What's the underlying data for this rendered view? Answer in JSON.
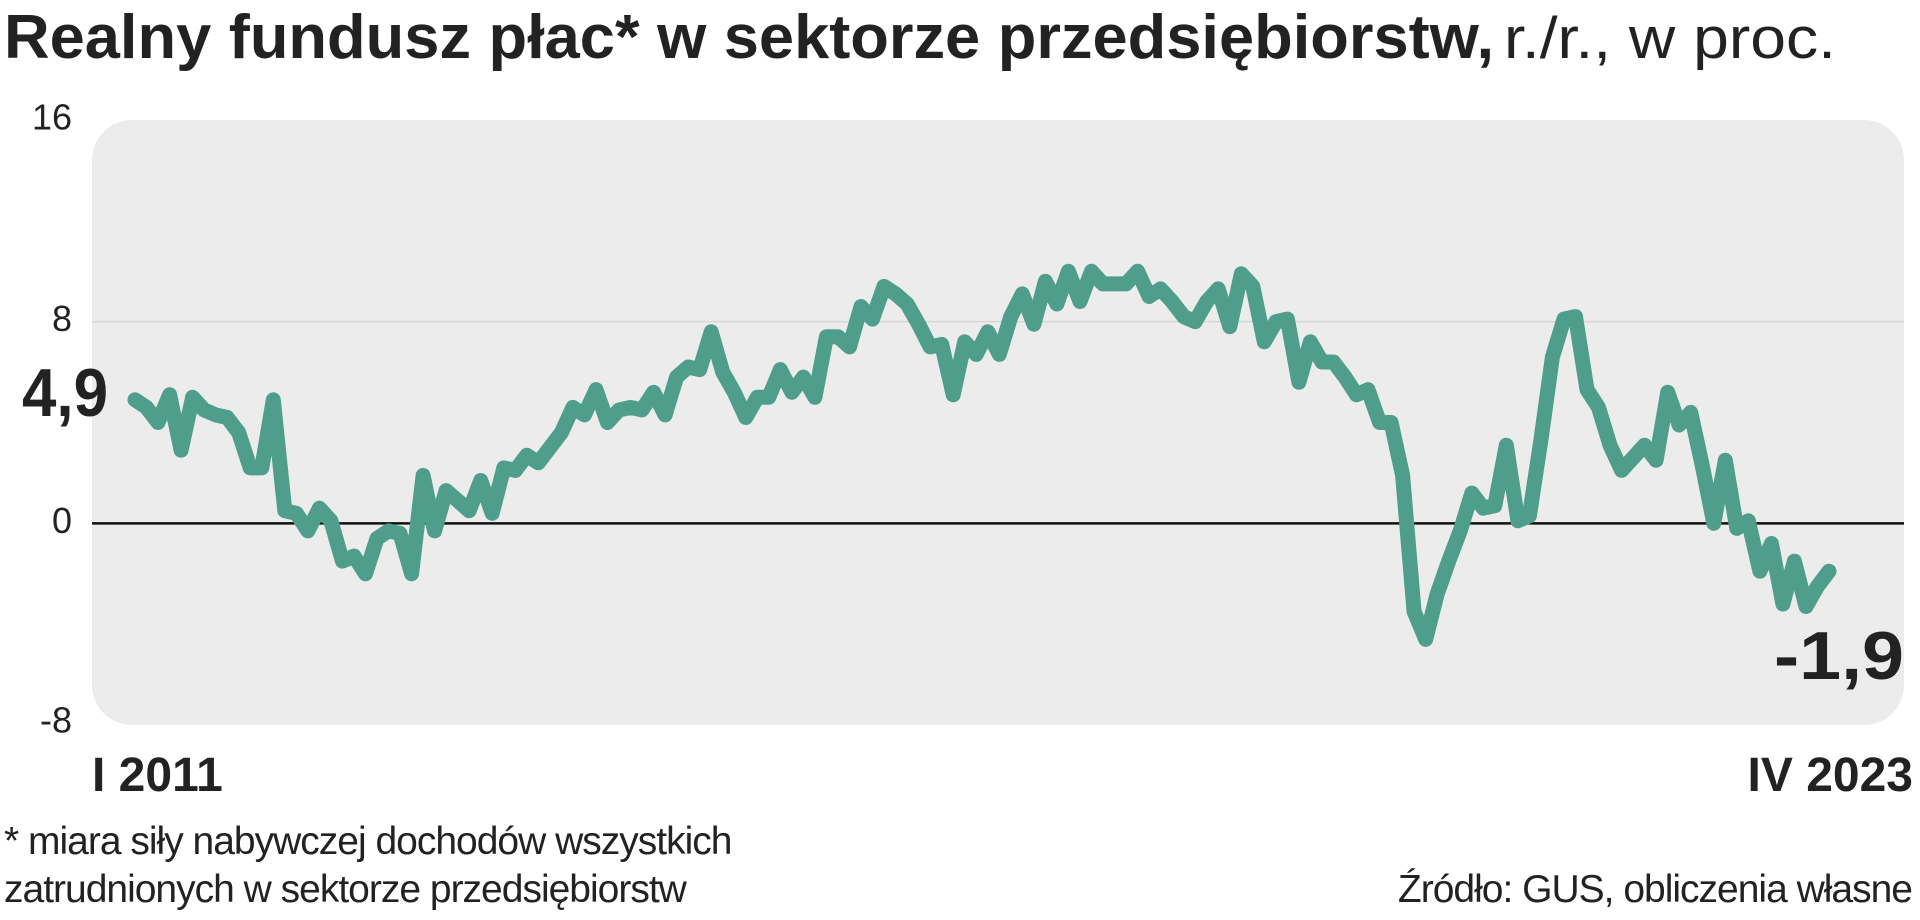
{
  "chart_data": {
    "type": "line",
    "title": "Realny fundusz płac* w sektorze przedsiębiorstw,",
    "title_unit": "r./r., w proc.",
    "footnote": "* miara siły nabywczej dochodów wszystkich zatrudnionych w sektorze przedsiębiorstw",
    "source": "Źródło: GUS, obliczenia własne",
    "color": "#4f9e8c",
    "ylim": [
      -8,
      16
    ],
    "yticks": [
      -8,
      0,
      8,
      16
    ],
    "grid": true,
    "categories": [
      "I 2011",
      null,
      null,
      null,
      null,
      null,
      null,
      null,
      null,
      null,
      null,
      null,
      null,
      null,
      null,
      null,
      null,
      null,
      null,
      null,
      null,
      null,
      null,
      null,
      null,
      null,
      null,
      null,
      null,
      null,
      null,
      null,
      null,
      null,
      null,
      null,
      null,
      null,
      null,
      null,
      null,
      null,
      null,
      null,
      null,
      null,
      null,
      null,
      null,
      null,
      null,
      null,
      null,
      null,
      null,
      null,
      null,
      null,
      null,
      null,
      null,
      null,
      null,
      null,
      null,
      null,
      null,
      null,
      null,
      null,
      null,
      null,
      null,
      null,
      null,
      null,
      null,
      null,
      null,
      null,
      null,
      null,
      null,
      null,
      null,
      null,
      null,
      null,
      null,
      null,
      null,
      null,
      null,
      null,
      null,
      null,
      null,
      null,
      null,
      null,
      null,
      null,
      null,
      null,
      null,
      null,
      null,
      null,
      null,
      null,
      null,
      null,
      null,
      null,
      null,
      null,
      null,
      null,
      null,
      null,
      null,
      null,
      null,
      null,
      null,
      null,
      null,
      null,
      null,
      null,
      null,
      null,
      null,
      null,
      null,
      null,
      null,
      null,
      null,
      null,
      null,
      null,
      null,
      null,
      null,
      null,
      null,
      "IV 2023"
    ],
    "values": [
      4.9,
      4.6,
      4.0,
      5.1,
      2.9,
      5.0,
      4.5,
      4.3,
      4.2,
      3.6,
      2.2,
      2.2,
      4.9,
      0.5,
      0.4,
      -0.3,
      0.6,
      0.1,
      -1.5,
      -1.3,
      -2.0,
      -0.6,
      -0.3,
      -0.4,
      -2.0,
      1.9,
      -0.3,
      1.3,
      0.9,
      0.5,
      1.7,
      0.4,
      2.2,
      2.1,
      2.7,
      2.4,
      3.0,
      3.6,
      4.6,
      4.3,
      5.3,
      4.0,
      4.5,
      4.6,
      4.5,
      5.2,
      4.3,
      5.8,
      6.2,
      6.1,
      7.6,
      6.0,
      5.2,
      4.2,
      5.0,
      5.0,
      6.1,
      5.2,
      5.8,
      5.0,
      7.4,
      7.4,
      7.0,
      8.6,
      8.1,
      9.4,
      9.1,
      8.7,
      7.9,
      7.0,
      7.1,
      5.1,
      7.2,
      6.7,
      7.6,
      6.7,
      8.2,
      9.1,
      7.9,
      9.6,
      8.7,
      10.0,
      8.8,
      10.0,
      9.5,
      9.5,
      9.5,
      10.0,
      9.0,
      9.3,
      8.8,
      8.2,
      8.0,
      8.8,
      9.3,
      7.8,
      9.9,
      9.4,
      7.2,
      8.0,
      8.1,
      5.6,
      7.2,
      6.4,
      6.4,
      5.8,
      5.1,
      5.3,
      4.0,
      4.0,
      1.9,
      -3.5,
      -4.6,
      -2.8,
      -1.5,
      -0.3,
      1.2,
      0.6,
      0.7,
      3.1,
      0.1,
      0.3,
      3.3,
      6.6,
      8.1,
      8.2,
      5.3,
      4.6,
      3.1,
      2.1,
      2.6,
      3.1,
      2.5,
      5.2,
      3.9,
      4.4,
      2.3,
      0.0,
      2.5,
      -0.2,
      0.1,
      -1.9,
      -0.8,
      -3.2,
      -1.5,
      -3.3,
      -2.5,
      -1.9
    ],
    "value_labels": [
      "4,9",
      null,
      null,
      null,
      null,
      null,
      null,
      null,
      null,
      null,
      null,
      null,
      null,
      null,
      null,
      null,
      null,
      null,
      null,
      null,
      null,
      null,
      null,
      null,
      null,
      null,
      null,
      null,
      null,
      null,
      null,
      null,
      null,
      null,
      null,
      null,
      null,
      null,
      null,
      null,
      null,
      null,
      null,
      null,
      null,
      null,
      null,
      null,
      null,
      null,
      null,
      null,
      null,
      null,
      null,
      null,
      null,
      null,
      null,
      null,
      null,
      null,
      null,
      null,
      null,
      null,
      null,
      null,
      null,
      null,
      null,
      null,
      null,
      null,
      null,
      null,
      null,
      null,
      null,
      null,
      null,
      null,
      null,
      null,
      null,
      null,
      null,
      null,
      null,
      null,
      null,
      null,
      null,
      null,
      null,
      null,
      null,
      null,
      null,
      null,
      null,
      null,
      null,
      null,
      null,
      null,
      null,
      null,
      null,
      null,
      null,
      null,
      null,
      null,
      null,
      null,
      null,
      null,
      null,
      null,
      null,
      null,
      null,
      null,
      null,
      null,
      null,
      null,
      null,
      null,
      null,
      null,
      null,
      null,
      null,
      null,
      null,
      null,
      null,
      null,
      null,
      null,
      null,
      null,
      null,
      null,
      null,
      "-1,9"
    ]
  }
}
